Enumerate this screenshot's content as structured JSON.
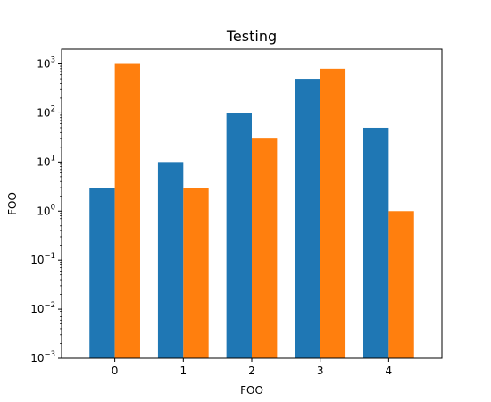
{
  "chart_data": {
    "type": "bar",
    "title": "Testing",
    "xlabel": "FOO",
    "ylabel": "FOO",
    "yscale": "log",
    "ylim": [
      0.001,
      2000
    ],
    "categories": [
      "0",
      "1",
      "2",
      "3",
      "4"
    ],
    "series": [
      {
        "values": [
          3,
          10,
          100,
          500,
          50
        ],
        "color": "#1f77b4"
      },
      {
        "values": [
          1000,
          3,
          30,
          800,
          1
        ],
        "color": "#ff7f0e"
      }
    ],
    "yticks": [
      {
        "value": 0.001,
        "base": "10",
        "exp": "−3"
      },
      {
        "value": 0.01,
        "base": "10",
        "exp": "−2"
      },
      {
        "value": 0.1,
        "base": "10",
        "exp": "−1"
      },
      {
        "value": 1,
        "base": "10",
        "exp": "0"
      },
      {
        "value": 10,
        "base": "10",
        "exp": "1"
      },
      {
        "value": 100,
        "base": "10",
        "exp": "2"
      },
      {
        "value": 1000,
        "base": "10",
        "exp": "3"
      }
    ],
    "grid": false,
    "legend": "none"
  }
}
